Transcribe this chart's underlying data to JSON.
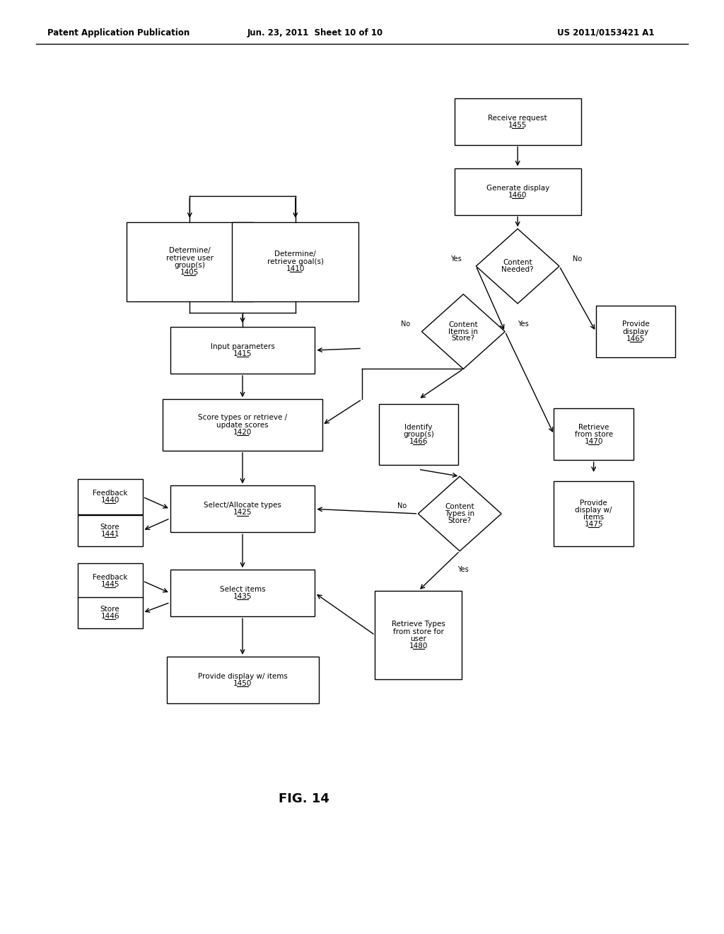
{
  "title_left": "Patent Application Publication",
  "title_center": "Jun. 23, 2011  Sheet 10 of 10",
  "title_right": "US 2011/0153421 A1",
  "fig_label": "FIG. 14",
  "background_color": "#ffffff",
  "header_fontsize": 8.5,
  "body_fontsize": 7.5,
  "label_fontsize": 7.0,
  "fig14_fontsize": 13
}
